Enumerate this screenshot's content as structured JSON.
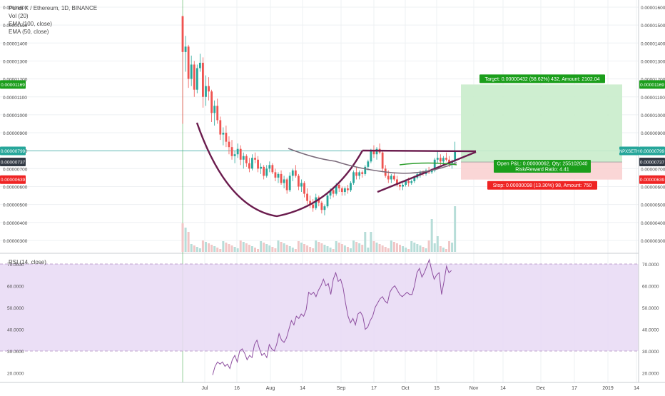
{
  "chart_title": "Pundi X / Ethereum, 1D, BINANCE",
  "indicators": [
    "Vol (20)",
    "EMA (100, close)",
    "EMA (50, close)"
  ],
  "rsi_title": "RSI (14, close)",
  "price_ticks": [
    "0.00001600",
    "0.00001500",
    "0.00001400",
    "0.00001300",
    "0.00001200",
    "0.00001100",
    "0.00001000",
    "0.00000900",
    "0.00000800",
    "0.00000700",
    "0.00000600",
    "0.00000500",
    "0.00000400",
    "0.00000300"
  ],
  "rsi_ticks": [
    "70.0000",
    "60.0000",
    "50.0000",
    "40.0000",
    "30.0000",
    "20.0000"
  ],
  "time_ticks": [
    "Jul",
    "16",
    "Aug",
    "14",
    "Sep",
    "17",
    "Oct",
    "15",
    "Nov",
    "14",
    "Dec",
    "17",
    "2019",
    "14"
  ],
  "badges": {
    "target_price": "0.00001169",
    "current_price": "0.00000799",
    "symbol_badge": "NPXSETH",
    "left_current": "0.00000799",
    "entry_price": "0.00000737",
    "stop_price": "0.00000639"
  },
  "position": {
    "target_label": "Target: 0.00000432 (58.62%) 432, Amount: 2102.04",
    "open_label": "Open P&L: 0.00000062, Qty: 255102040",
    "rr_label": "Risk/Reward Ratio: 4.41",
    "stop_label": "Stop: 0.00000098 (13.30%) 98, Amount: 750"
  },
  "colors": {
    "up": "#26a69a",
    "down": "#ef5350",
    "pattern": "#6a1b4d",
    "ema": "#7a6a7a",
    "green_ma": "#2e9e2e",
    "rsi_line": "#8e4fa0",
    "rsi_band": "#e8d9f5",
    "profit_zone": "#c9eccb",
    "loss_zone": "#f9d2d2",
    "target_badge": "#1b9e1b",
    "stop_badge": "#ef2424",
    "price_badge": "#26a69a"
  },
  "chart_data": [
    {
      "type": "candlestick",
      "title": "Pundi X / Ethereum, 1D, BINANCE",
      "x_start": "2018-06-20",
      "ylim": [
        2.7e-06,
        1.63e-05
      ],
      "candles": [
        [
          15.5,
          15.5,
          9.5,
          13.5
        ],
        [
          13.5,
          14.4,
          12.4,
          13.8
        ],
        [
          13.8,
          13.9,
          11.5,
          12.0
        ],
        [
          12.0,
          13.3,
          11.6,
          12.8
        ],
        [
          12.8,
          13.0,
          11.0,
          11.4
        ],
        [
          11.4,
          12.8,
          11.2,
          12.6
        ],
        [
          12.6,
          13.4,
          12.4,
          12.9
        ],
        [
          12.9,
          13.2,
          10.4,
          11.0
        ],
        [
          11.0,
          12.2,
          10.5,
          11.6
        ],
        [
          11.6,
          12.1,
          10.8,
          11.3
        ],
        [
          11.3,
          11.4,
          9.6,
          10.1
        ],
        [
          10.1,
          10.8,
          9.4,
          10.5
        ],
        [
          10.5,
          10.9,
          9.5,
          9.7
        ],
        [
          9.7,
          9.9,
          8.6,
          8.9
        ],
        [
          8.9,
          9.3,
          8.3,
          9.0
        ],
        [
          9.0,
          9.4,
          8.2,
          8.5
        ],
        [
          8.5,
          8.8,
          7.8,
          8.2
        ],
        [
          8.2,
          8.6,
          7.5,
          7.7
        ],
        [
          7.7,
          8.0,
          7.3,
          7.8
        ],
        [
          7.8,
          8.4,
          7.6,
          8.1
        ],
        [
          8.1,
          8.3,
          7.2,
          7.5
        ],
        [
          7.5,
          7.9,
          7.0,
          7.7
        ],
        [
          7.7,
          7.8,
          7.1,
          7.3
        ],
        [
          7.3,
          7.6,
          6.8,
          7.0
        ],
        [
          7.0,
          7.8,
          6.9,
          7.6
        ],
        [
          7.6,
          7.9,
          7.3,
          7.5
        ],
        [
          7.5,
          7.7,
          6.8,
          7.0
        ],
        [
          7.0,
          7.3,
          6.7,
          7.1
        ],
        [
          7.1,
          7.2,
          6.4,
          6.6
        ],
        [
          6.6,
          7.2,
          6.5,
          7.0
        ],
        [
          7.0,
          7.4,
          6.8,
          7.2
        ],
        [
          7.2,
          7.3,
          6.7,
          6.8
        ],
        [
          6.8,
          7.0,
          6.3,
          6.5
        ],
        [
          6.5,
          6.8,
          6.2,
          6.7
        ],
        [
          6.7,
          6.9,
          6.1,
          6.2
        ],
        [
          6.2,
          6.6,
          5.9,
          6.4
        ],
        [
          6.4,
          6.5,
          5.6,
          5.8
        ],
        [
          5.8,
          6.8,
          5.7,
          6.6
        ],
        [
          6.6,
          7.0,
          6.3,
          6.9
        ],
        [
          6.9,
          7.2,
          6.5,
          6.6
        ],
        [
          6.6,
          6.7,
          5.8,
          6.0
        ],
        [
          6.0,
          6.4,
          5.7,
          6.2
        ],
        [
          6.2,
          6.3,
          5.4,
          5.6
        ],
        [
          5.6,
          5.9,
          5.0,
          5.2
        ],
        [
          5.2,
          5.5,
          4.8,
          5.0
        ],
        [
          5.0,
          5.3,
          4.6,
          4.8
        ],
        [
          4.8,
          5.6,
          4.7,
          5.4
        ],
        [
          5.4,
          5.5,
          4.9,
          5.1
        ],
        [
          5.1,
          5.2,
          4.5,
          4.7
        ],
        [
          4.7,
          5.0,
          4.4,
          4.9
        ],
        [
          4.9,
          5.6,
          4.8,
          5.5
        ],
        [
          5.5,
          5.9,
          5.3,
          5.8
        ],
        [
          5.8,
          6.0,
          5.4,
          5.6
        ],
        [
          5.6,
          6.2,
          5.5,
          6.1
        ],
        [
          6.1,
          6.3,
          5.7,
          5.9
        ],
        [
          5.9,
          6.0,
          5.5,
          5.7
        ],
        [
          5.7,
          6.0,
          5.5,
          5.9
        ],
        [
          5.9,
          6.1,
          5.6,
          5.8
        ],
        [
          5.8,
          6.3,
          5.7,
          6.2
        ],
        [
          6.2,
          6.9,
          6.1,
          6.8
        ],
        [
          6.8,
          7.1,
          6.4,
          6.6
        ],
        [
          6.6,
          6.9,
          6.4,
          6.8
        ],
        [
          6.8,
          6.9,
          6.5,
          6.7
        ],
        [
          6.7,
          7.2,
          6.6,
          7.1
        ],
        [
          7.1,
          7.5,
          6.9,
          7.4
        ],
        [
          7.4,
          8.1,
          7.3,
          8.0
        ],
        [
          8.0,
          8.3,
          7.6,
          7.8
        ],
        [
          7.8,
          8.2,
          7.5,
          8.1
        ],
        [
          8.1,
          8.4,
          7.8,
          7.9
        ],
        [
          7.9,
          8.0,
          6.8,
          7.0
        ],
        [
          7.0,
          7.2,
          6.5,
          6.6
        ],
        [
          6.6,
          6.9,
          6.2,
          6.4
        ],
        [
          6.4,
          6.7,
          6.2,
          6.6
        ],
        [
          6.6,
          6.8,
          6.3,
          6.4
        ],
        [
          6.4,
          6.6,
          6.0,
          6.1
        ],
        [
          6.1,
          6.3,
          5.8,
          6.0
        ],
        [
          6.0,
          6.2,
          5.8,
          6.1
        ],
        [
          6.1,
          6.4,
          6.0,
          6.3
        ],
        [
          6.3,
          6.5,
          6.0,
          6.2
        ],
        [
          6.2,
          6.4,
          6.1,
          6.3
        ],
        [
          6.3,
          6.6,
          6.2,
          6.5
        ],
        [
          6.5,
          6.8,
          6.4,
          6.7
        ],
        [
          6.7,
          6.9,
          6.5,
          6.8
        ],
        [
          6.8,
          6.9,
          6.6,
          6.7
        ],
        [
          6.7,
          7.0,
          6.6,
          6.9
        ],
        [
          6.9,
          7.1,
          6.7,
          6.8
        ],
        [
          6.8,
          7.0,
          6.7,
          6.9
        ],
        [
          6.9,
          7.6,
          6.8,
          7.5
        ],
        [
          7.5,
          8.0,
          7.3,
          7.6
        ],
        [
          7.6,
          7.8,
          7.2,
          7.4
        ],
        [
          7.4,
          7.7,
          7.2,
          7.6
        ],
        [
          7.6,
          7.9,
          7.4,
          7.5
        ],
        [
          7.5,
          7.7,
          7.1,
          7.3
        ],
        [
          7.3,
          7.5,
          7.0,
          7.4
        ],
        [
          7.4,
          8.5,
          7.3,
          7.99
        ]
      ]
    },
    {
      "type": "line",
      "title": "RSI (14, close)",
      "ylim": [
        16,
        74
      ],
      "band": [
        30,
        70
      ],
      "values": [
        19,
        23,
        25,
        24,
        25,
        23,
        24,
        22,
        26,
        28,
        25,
        30,
        31,
        29,
        26,
        28,
        27,
        33,
        35,
        31,
        28,
        29,
        27,
        33,
        31,
        30,
        33,
        38,
        35,
        34,
        36,
        40,
        44,
        42,
        46,
        45,
        47,
        46,
        49,
        57,
        56,
        57,
        55,
        58,
        60,
        63,
        60,
        61,
        56,
        63,
        66,
        62,
        63,
        59,
        52,
        46,
        43,
        45,
        42,
        47,
        48,
        46,
        40,
        41,
        44,
        46,
        50,
        52,
        54,
        55,
        53,
        52,
        57,
        59,
        60,
        58,
        56,
        55,
        56,
        57,
        56,
        56,
        60,
        66,
        68,
        64,
        66,
        69,
        72,
        67,
        63,
        65,
        66,
        56,
        62,
        69,
        66,
        67
      ]
    }
  ]
}
